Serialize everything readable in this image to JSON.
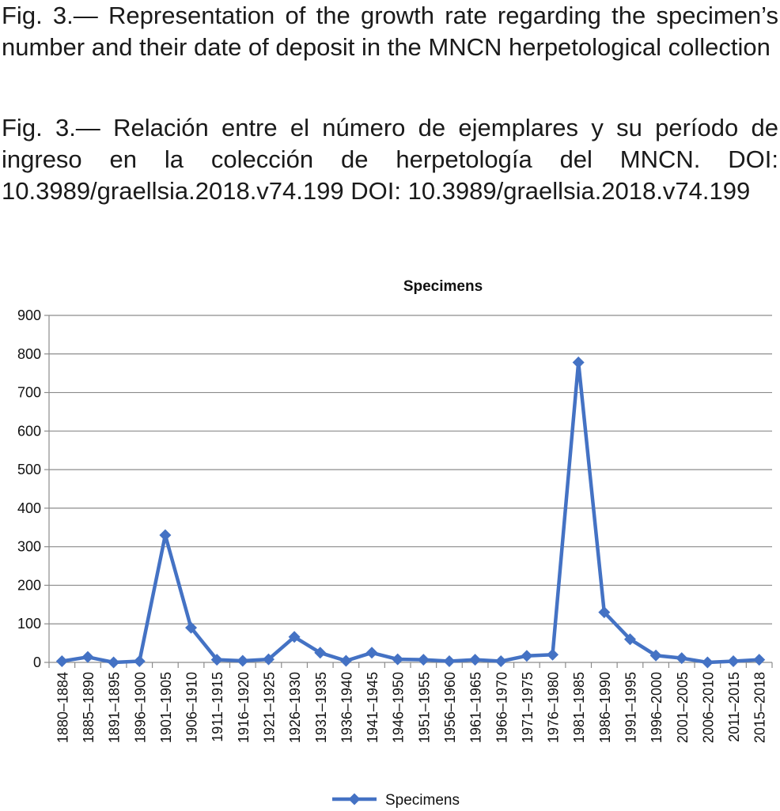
{
  "captions": {
    "english": "Fig. 3.— Representation of the growth rate regarding the specimen’s number and their date of deposit in the MNCN herpetological collection",
    "spanish": "Fig. 3.— Relación entre el número de ejemplares y su período de ingreso en la colección de herpetología del MNCN. DOI: 10.3989/graellsia.2018.v74.199 DOI: 10.3989/graellsia.2018.v74.199"
  },
  "chart_data": {
    "type": "line",
    "title": "Specimens",
    "xlabel": "",
    "ylabel": "",
    "ylim": [
      0,
      900
    ],
    "yticks": [
      0,
      100,
      200,
      300,
      400,
      500,
      600,
      700,
      800,
      900
    ],
    "grid": true,
    "legend_position": "bottom",
    "categories": [
      "1880–1884",
      "1885–1890",
      "1891–1895",
      "1896–1900",
      "1901–1905",
      "1906–1910",
      "1911–1915",
      "1916–1920",
      "1921–1925",
      "1926–1930",
      "1931–1935",
      "1936–1940",
      "1941–1945",
      "1946–1950",
      "1951–1955",
      "1956–1960",
      "1961–1965",
      "1966–1970",
      "1971–1975",
      "1976–1980",
      "1981–1985",
      "1986–1990",
      "1991–1995",
      "1996–2000",
      "2001–2005",
      "2006–2010",
      "2011–2015",
      "2015–2018"
    ],
    "series": [
      {
        "name": "Specimens",
        "color": "#4472C4",
        "marker": "diamond",
        "values": [
          3,
          14,
          0,
          3,
          330,
          90,
          7,
          4,
          8,
          66,
          25,
          4,
          25,
          8,
          7,
          3,
          7,
          3,
          17,
          20,
          778,
          130,
          60,
          18,
          11,
          0,
          3,
          7
        ]
      }
    ]
  }
}
